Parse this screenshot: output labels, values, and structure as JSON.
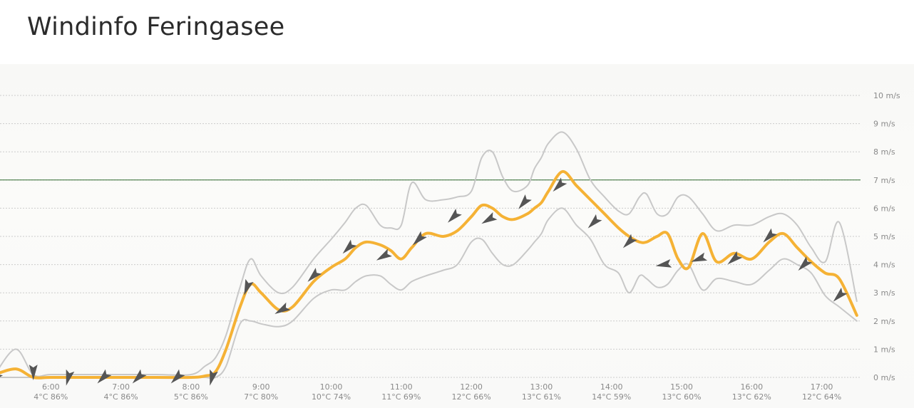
{
  "page": {
    "title": "Windinfo Feringasee"
  },
  "colors": {
    "avg_line": "#f5b235",
    "band_line": "#c8c8c8",
    "threshold_line": "#2f6a2f",
    "arrow": "#555555",
    "grid": "#cccccc"
  },
  "icons": {
    "direction_marker": "wind-direction-arrow-icon"
  },
  "chart_data": {
    "type": "line",
    "title": "",
    "xlabel": "",
    "ylabel": "",
    "y_unit": "m/s",
    "ylim": [
      0,
      10
    ],
    "y_ticks": [
      0,
      1,
      2,
      3,
      4,
      5,
      6,
      7,
      8,
      9,
      10
    ],
    "y_tick_labels": [
      "0 m/s",
      "1 m/s",
      "2 m/s",
      "3 m/s",
      "4 m/s",
      "5 m/s",
      "6 m/s",
      "7 m/s",
      "8 m/s",
      "9 m/s",
      "10 m/s"
    ],
    "xlim": [
      5.2,
      17.5
    ],
    "grid": true,
    "threshold": 7.0,
    "x_ticks": [
      {
        "hour": 5.0,
        "label": "",
        "sub": "%"
      },
      {
        "hour": 6.0,
        "label": "6:00",
        "sub": "4°C 86%"
      },
      {
        "hour": 7.0,
        "label": "7:00",
        "sub": "4°C 86%"
      },
      {
        "hour": 8.0,
        "label": "8:00",
        "sub": "5°C 86%"
      },
      {
        "hour": 9.0,
        "label": "9:00",
        "sub": "7°C 80%"
      },
      {
        "hour": 10.0,
        "label": "10:00",
        "sub": "10°C 74%"
      },
      {
        "hour": 11.0,
        "label": "11:00",
        "sub": "11°C 69%"
      },
      {
        "hour": 12.0,
        "label": "12:00",
        "sub": "12°C 66%"
      },
      {
        "hour": 13.0,
        "label": "13:00",
        "sub": "13°C 61%"
      },
      {
        "hour": 14.0,
        "label": "14:00",
        "sub": "14°C 59%"
      },
      {
        "hour": 15.0,
        "label": "15:00",
        "sub": "13°C 60%"
      },
      {
        "hour": 16.0,
        "label": "16:00",
        "sub": "13°C 62%"
      },
      {
        "hour": 17.0,
        "label": "17:00",
        "sub": "12°C 64%"
      }
    ],
    "series": [
      {
        "key": "avg",
        "x": [
          5.2,
          5.5,
          5.75,
          6.0,
          6.5,
          7.0,
          7.5,
          8.0,
          8.2,
          8.35,
          8.5,
          8.7,
          8.85,
          9.0,
          9.25,
          9.45,
          9.75,
          10.0,
          10.2,
          10.35,
          10.5,
          10.7,
          10.85,
          11.0,
          11.15,
          11.35,
          11.6,
          11.8,
          12.0,
          12.15,
          12.3,
          12.45,
          12.6,
          12.8,
          12.9,
          13.0,
          13.1,
          13.3,
          13.5,
          13.7,
          13.9,
          14.1,
          14.25,
          14.4,
          14.5,
          14.65,
          14.8,
          14.95,
          15.1,
          15.3,
          15.5,
          15.75,
          16.0,
          16.25,
          16.45,
          16.65,
          16.85,
          17.05,
          17.25,
          17.5
        ],
        "y": [
          0.1,
          0.3,
          0.0,
          0.0,
          0.0,
          0.0,
          0.0,
          0.0,
          0.05,
          0.2,
          1.0,
          2.5,
          3.3,
          3.0,
          2.4,
          2.5,
          3.4,
          3.9,
          4.2,
          4.6,
          4.8,
          4.7,
          4.5,
          4.2,
          4.6,
          5.1,
          5.0,
          5.2,
          5.7,
          6.1,
          6.0,
          5.7,
          5.6,
          5.8,
          6.0,
          6.2,
          6.6,
          7.3,
          6.8,
          6.3,
          5.8,
          5.3,
          5.0,
          4.8,
          4.8,
          5.0,
          5.1,
          4.2,
          3.9,
          5.1,
          4.1,
          4.4,
          4.2,
          4.8,
          5.1,
          4.6,
          4.1,
          3.7,
          3.5,
          2.2
        ]
      },
      {
        "key": "max",
        "x": [
          5.2,
          5.5,
          5.75,
          6.0,
          6.5,
          7.0,
          7.5,
          8.0,
          8.2,
          8.35,
          8.5,
          8.7,
          8.85,
          9.0,
          9.25,
          9.45,
          9.75,
          10.0,
          10.2,
          10.35,
          10.5,
          10.7,
          10.85,
          11.0,
          11.15,
          11.35,
          11.6,
          11.8,
          12.0,
          12.15,
          12.3,
          12.45,
          12.6,
          12.8,
          12.9,
          13.0,
          13.1,
          13.3,
          13.5,
          13.7,
          13.9,
          14.1,
          14.25,
          14.4,
          14.5,
          14.65,
          14.8,
          14.95,
          15.1,
          15.3,
          15.5,
          15.75,
          16.0,
          16.25,
          16.45,
          16.65,
          16.85,
          17.05,
          17.25,
          17.5
        ],
        "y": [
          0.1,
          1.0,
          0.1,
          0.1,
          0.1,
          0.1,
          0.1,
          0.1,
          0.4,
          0.7,
          1.5,
          3.2,
          4.2,
          3.6,
          3.0,
          3.2,
          4.2,
          4.9,
          5.5,
          6.0,
          6.1,
          5.4,
          5.3,
          5.4,
          6.9,
          6.3,
          6.3,
          6.4,
          6.6,
          7.8,
          8.0,
          7.1,
          6.6,
          6.8,
          7.4,
          7.8,
          8.3,
          8.7,
          8.1,
          7.0,
          6.4,
          5.9,
          5.8,
          6.4,
          6.5,
          5.8,
          5.8,
          6.4,
          6.4,
          5.8,
          5.2,
          5.4,
          5.4,
          5.7,
          5.8,
          5.4,
          4.6,
          4.1,
          5.5,
          2.7
        ]
      },
      {
        "key": "min",
        "x": [
          5.2,
          5.5,
          5.75,
          6.0,
          6.5,
          7.0,
          7.5,
          8.0,
          8.2,
          8.35,
          8.5,
          8.7,
          8.85,
          9.0,
          9.25,
          9.45,
          9.75,
          10.0,
          10.2,
          10.35,
          10.5,
          10.7,
          10.85,
          11.0,
          11.15,
          11.35,
          11.6,
          11.8,
          12.0,
          12.15,
          12.3,
          12.45,
          12.6,
          12.8,
          12.9,
          13.0,
          13.1,
          13.3,
          13.5,
          13.7,
          13.9,
          14.1,
          14.25,
          14.4,
          14.5,
          14.65,
          14.8,
          14.95,
          15.1,
          15.3,
          15.5,
          15.75,
          16.0,
          16.25,
          16.45,
          16.65,
          16.85,
          17.05,
          17.25,
          17.5
        ],
        "y": [
          0.0,
          0.0,
          0.0,
          0.0,
          0.0,
          0.0,
          0.0,
          0.0,
          0.0,
          0.0,
          0.4,
          1.9,
          2.0,
          1.9,
          1.8,
          2.0,
          2.8,
          3.1,
          3.1,
          3.4,
          3.6,
          3.6,
          3.3,
          3.1,
          3.4,
          3.6,
          3.8,
          4.0,
          4.8,
          4.9,
          4.4,
          4.0,
          4.0,
          4.5,
          4.8,
          5.1,
          5.6,
          6.0,
          5.4,
          4.9,
          4.0,
          3.7,
          3.0,
          3.6,
          3.5,
          3.2,
          3.3,
          3.8,
          4.0,
          3.1,
          3.5,
          3.4,
          3.3,
          3.8,
          4.2,
          4.0,
          3.7,
          2.9,
          2.5,
          2.0
        ]
      }
    ],
    "direction_markers": [
      {
        "x": 5.2,
        "y": 0.0,
        "dir": 225
      },
      {
        "x": 5.75,
        "y": 0.2,
        "dir": 180
      },
      {
        "x": 6.25,
        "y": 0.0,
        "dir": 195
      },
      {
        "x": 6.75,
        "y": 0.0,
        "dir": 225
      },
      {
        "x": 7.25,
        "y": 0.0,
        "dir": 225
      },
      {
        "x": 7.8,
        "y": 0.0,
        "dir": 225
      },
      {
        "x": 8.3,
        "y": 0.0,
        "dir": 195
      },
      {
        "x": 8.8,
        "y": 3.2,
        "dir": 200
      },
      {
        "x": 9.3,
        "y": 2.4,
        "dir": 240
      },
      {
        "x": 9.75,
        "y": 3.6,
        "dir": 225
      },
      {
        "x": 10.25,
        "y": 4.6,
        "dir": 225
      },
      {
        "x": 10.75,
        "y": 4.3,
        "dir": 240
      },
      {
        "x": 11.25,
        "y": 4.9,
        "dir": 225
      },
      {
        "x": 11.75,
        "y": 5.7,
        "dir": 225
      },
      {
        "x": 12.25,
        "y": 5.6,
        "dir": 240
      },
      {
        "x": 12.75,
        "y": 6.2,
        "dir": 220
      },
      {
        "x": 13.25,
        "y": 6.8,
        "dir": 225
      },
      {
        "x": 13.75,
        "y": 5.5,
        "dir": 225
      },
      {
        "x": 14.25,
        "y": 4.8,
        "dir": 225
      },
      {
        "x": 14.75,
        "y": 4.0,
        "dir": 260
      },
      {
        "x": 15.25,
        "y": 4.2,
        "dir": 250
      },
      {
        "x": 15.75,
        "y": 4.2,
        "dir": 230
      },
      {
        "x": 16.25,
        "y": 5.0,
        "dir": 225
      },
      {
        "x": 16.75,
        "y": 4.0,
        "dir": 225
      },
      {
        "x": 17.25,
        "y": 2.9,
        "dir": 225
      }
    ]
  }
}
